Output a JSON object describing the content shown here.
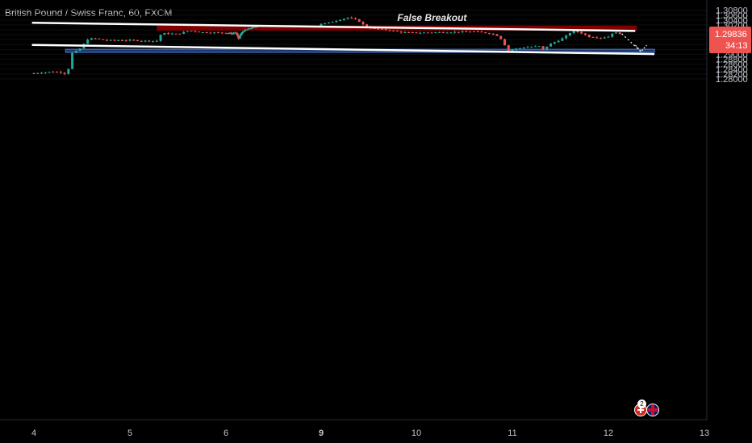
{
  "title": "British Pound / Swiss Franc, 60, FXCM",
  "colors": {
    "background": "#000000",
    "bullish": "#26a69a",
    "bearish": "#ef5350",
    "resistance_zone": "#8b0000",
    "support_zone": "#1e3f7a",
    "trendline": "#ffffff",
    "price_label_bg": "#ef5350"
  },
  "chart_data": {
    "type": "candlestick",
    "title": "British Pound / Swiss Franc, 60, FXCM",
    "y_ticks": [
      "1.30800",
      "1.30600",
      "1.30400",
      "1.30200",
      "1.30000",
      "1.29600",
      "1.29400",
      "1.29200",
      "1.29000",
      "1.28800",
      "1.28600",
      "1.28400",
      "1.28200",
      "1.28000"
    ],
    "x_ticks": [
      "4",
      "5",
      "6",
      "9",
      "10",
      "11",
      "12",
      "13"
    ],
    "ylim": [
      1.2786,
      1.309
    ],
    "last_price": "1.29836",
    "countdown": "34:13",
    "annotation": "False Breakout",
    "resistance_zone": [
      1.2997,
      1.3017
    ],
    "support_zone": [
      1.2908,
      1.2921
    ],
    "upper_trendline": [
      [
        3.98,
        1.30288
      ],
      [
        12.28,
        1.29958
      ]
    ],
    "lower_trendline": [
      [
        3.98,
        1.29388
      ],
      [
        12.48,
        1.29012
      ]
    ],
    "projection": [
      [
        12.14,
        1.2984
      ],
      [
        12.34,
        1.2911
      ]
    ],
    "path": [
      [
        4.0,
        1.2823
      ],
      [
        4.2,
        1.283
      ],
      [
        4.3,
        1.2826
      ],
      [
        4.35,
        1.2815
      ],
      [
        4.37,
        1.2868
      ],
      [
        4.4,
        1.2905
      ],
      [
        4.45,
        1.2915
      ],
      [
        4.5,
        1.293
      ],
      [
        4.55,
        1.296
      ],
      [
        4.62,
        1.2966
      ],
      [
        4.75,
        1.2957
      ],
      [
        4.9,
        1.2958
      ],
      [
        5.05,
        1.2957
      ],
      [
        5.15,
        1.2955
      ],
      [
        5.28,
        1.2955
      ],
      [
        5.33,
        1.2986
      ],
      [
        5.5,
        1.2983
      ],
      [
        5.62,
        1.2997
      ],
      [
        5.75,
        1.299
      ],
      [
        6.0,
        1.2988
      ],
      [
        6.2,
        1.2985
      ],
      [
        6.3,
        1.299
      ],
      [
        6.35,
        1.2978
      ],
      [
        6.4,
        1.2965
      ],
      [
        6.45,
        1.298
      ],
      [
        6.55,
        1.2995
      ],
      [
        6.7,
        1.3003
      ],
      [
        6.85,
        1.301
      ],
      [
        7.0,
        1.3016
      ],
      [
        9.05,
        1.3026
      ],
      [
        9.2,
        1.3042
      ],
      [
        9.28,
        1.305
      ],
      [
        9.38,
        1.304
      ],
      [
        9.47,
        1.3013
      ],
      [
        9.55,
        1.3005
      ],
      [
        9.7,
        1.2999
      ],
      [
        9.85,
        1.299
      ],
      [
        10.0,
        1.2988
      ],
      [
        10.2,
        1.299
      ],
      [
        10.4,
        1.2991
      ],
      [
        10.6,
        1.2993
      ],
      [
        10.78,
        1.2985
      ],
      [
        10.85,
        1.2975
      ],
      [
        10.9,
        1.2956
      ],
      [
        10.95,
        1.2912
      ],
      [
        11.02,
        1.2922
      ],
      [
        11.15,
        1.293
      ],
      [
        11.28,
        1.2933
      ],
      [
        11.32,
        1.2918
      ],
      [
        11.38,
        1.294
      ],
      [
        11.5,
        1.296
      ],
      [
        11.58,
        1.298
      ],
      [
        11.62,
        1.2996
      ],
      [
        11.7,
        1.299
      ],
      [
        11.8,
        1.2972
      ],
      [
        11.92,
        1.2968
      ],
      [
        12.0,
        1.2972
      ],
      [
        12.05,
        1.299
      ],
      [
        12.14,
        1.29836
      ]
    ]
  }
}
